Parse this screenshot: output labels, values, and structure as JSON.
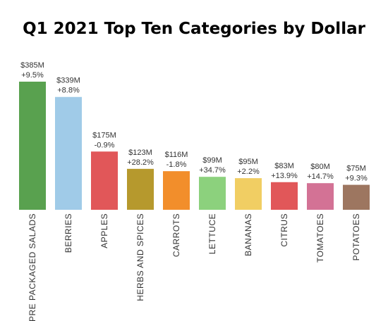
{
  "chart_data": {
    "type": "bar",
    "title": "Q1 2021 Top Ten Categories by Dollar",
    "xlabel": "",
    "ylabel": "",
    "ylim": [
      0,
      385
    ],
    "categories": [
      "PRE PACKAGED SALADS",
      "BERRIES",
      "APPLES",
      "HERBS AND SPICES",
      "CARROTS",
      "LETTUCE",
      "BANANAS",
      "CITRUS",
      "TOMATOES",
      "POTATOES"
    ],
    "values": [
      385,
      339,
      175,
      123,
      116,
      99,
      95,
      83,
      80,
      75
    ],
    "value_labels": [
      "$385M",
      "$339M",
      "$175M",
      "$123M",
      "$116M",
      "$99M",
      "$95M",
      "$83M",
      "$80M",
      "$75M"
    ],
    "change_labels": [
      "+9.5%",
      "+8.8%",
      "-0.9%",
      "+28.2%",
      "-1.8%",
      "+34.7%",
      "+2.2%",
      "+13.9%",
      "+14.7%",
      "+9.3%"
    ],
    "colors": [
      "#59a14f",
      "#a0cbe8",
      "#e15759",
      "#b6992d",
      "#f28e2b",
      "#8cd17d",
      "#f1ce63",
      "#e15759",
      "#d37295",
      "#9d7660"
    ],
    "grid": false,
    "legend": "none"
  }
}
